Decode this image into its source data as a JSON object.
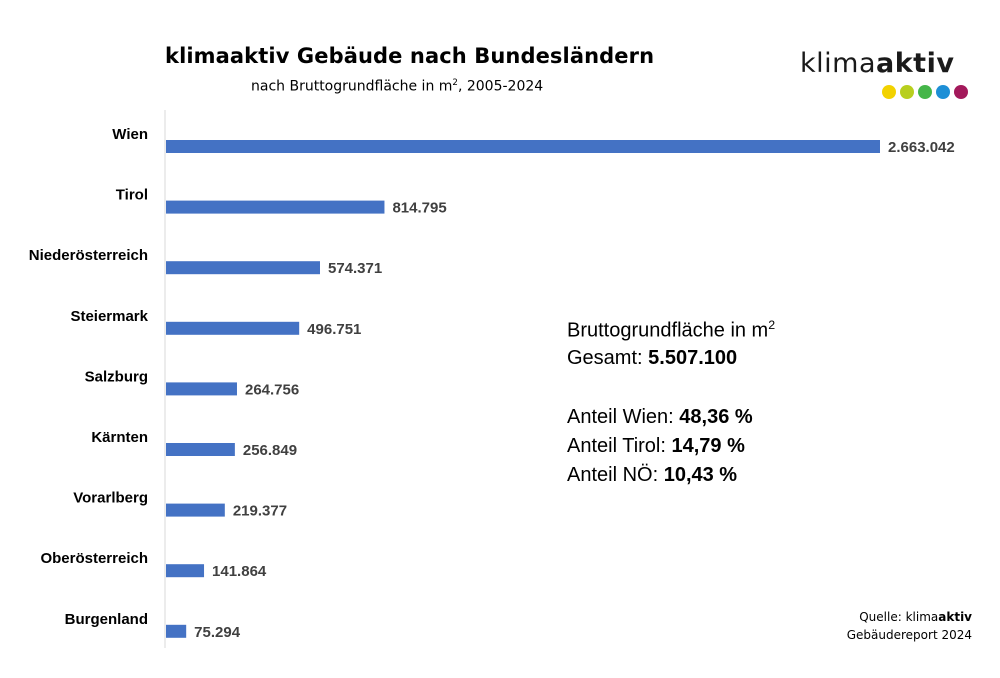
{
  "chart_data": {
    "type": "bar",
    "orientation": "horizontal",
    "title": "klimaaktiv Gebäude nach Bundesländern",
    "subtitle_prefix": "nach Bruttogrundfläche in m",
    "subtitle_sup": "2",
    "subtitle_suffix": ", 2005-2024",
    "categories": [
      "Wien",
      "Tirol",
      "Niederösterreich",
      "Steiermark",
      "Salzburg",
      "Kärnten",
      "Vorarlberg",
      "Oberösterreich",
      "Burgenland"
    ],
    "values": [
      2663042,
      814795,
      574371,
      496751,
      264756,
      256849,
      219377,
      141864,
      75294
    ],
    "data_labels": [
      "2.663.042",
      "814.795",
      "574.371",
      "496.751",
      "264.756",
      "256.849",
      "219.377",
      "141.864",
      "75.294"
    ],
    "xlim": [
      0,
      2663042
    ],
    "bar_color": "#4472c4",
    "grid": false,
    "legend": "none"
  },
  "summary": {
    "line1_prefix": "Bruttogrundfläche in m",
    "line1_sup": "2",
    "gesamt_label": "Gesamt: ",
    "gesamt_value": "5.507.100",
    "shares": [
      {
        "label": "Anteil Wien: ",
        "value": "48,36 %"
      },
      {
        "label": "Anteil Tirol: ",
        "value": "14,79 %"
      },
      {
        "label": "Anteil NÖ: ",
        "value": "10,43 %"
      }
    ]
  },
  "logo": {
    "text_regular": "klima",
    "text_bold": "aktiv",
    "dot_colors": [
      "#f2d200",
      "#b8cf1e",
      "#45b649",
      "#1d8fd6",
      "#a3195b"
    ]
  },
  "source": {
    "label": "Quelle: ",
    "brand_regular": "klima",
    "brand_bold": "aktiv",
    "line2": "Gebäudereport 2024"
  }
}
